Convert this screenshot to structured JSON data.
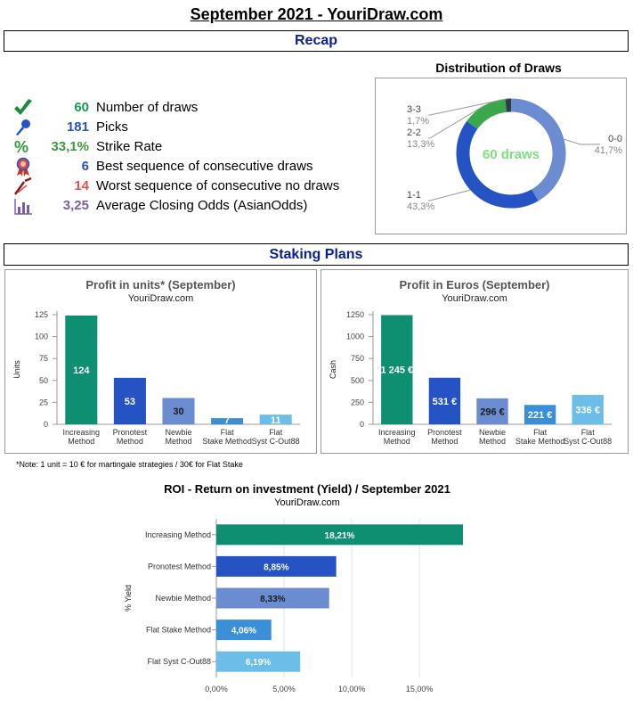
{
  "page": {
    "title": "September 2021 - YouriDraw.com",
    "recap_label": "Recap",
    "staking_label": "Staking Plans",
    "note": "*Note:  1 unit = 10 € for martingale strategies / 30€ for Flat Stake"
  },
  "colors": {
    "section_text": "#0a1f8f",
    "increasing": "#0e8f72",
    "pronotest": "#2553c4",
    "newbie": "#6b8cd0",
    "flat_stake": "#3b8fd8",
    "flat_syst": "#6cbde8"
  },
  "recap": {
    "stats": [
      {
        "icon": "checkmark-icon",
        "value": "60",
        "label": "Number of draws",
        "color": "#1a9a5a"
      },
      {
        "icon": "pushpin-icon",
        "value": "181",
        "label": "Picks",
        "color": "#2553c4"
      },
      {
        "icon": "percent-icon",
        "value": "33,1%",
        "label": "Strike Rate",
        "color": "#3a9a3a"
      },
      {
        "icon": "award-ribbon-icon",
        "value": "6",
        "label": "Best sequence of consecutive draws",
        "color": "#2553c4"
      },
      {
        "icon": "broken-pen-icon",
        "value": "14",
        "label": "Worst sequence of consecutive no draws",
        "color": "#d9534f"
      },
      {
        "icon": "bar-chart-icon",
        "value": "3,25",
        "label": "Average Closing Odds (AsianOdds)",
        "color": "#7b5ea7"
      }
    ]
  },
  "chart_data": [
    {
      "type": "pie",
      "title": "Distribution of Draws",
      "center_label": "60 draws",
      "slices": [
        {
          "name": "0-0",
          "value": 41.7,
          "label": "41,7%",
          "color": "#6b8cd0"
        },
        {
          "name": "1-1",
          "value": 43.3,
          "label": "43,3%",
          "color": "#2553c4"
        },
        {
          "name": "2-2",
          "value": 13.3,
          "label": "13,3%",
          "color": "#3aa84a"
        },
        {
          "name": "3-3",
          "value": 1.7,
          "label": "1,7%",
          "color": "#2f3b4a"
        }
      ]
    },
    {
      "type": "bar",
      "title": "Profit in units* (September)",
      "subtitle": "YouriDraw.com",
      "ylabel": "Units",
      "categories": [
        "Increasing Method",
        "Pronotest Method",
        "Newbie Method",
        "Flat Stake Method",
        "Flat Syst C-Out88"
      ],
      "values": [
        124,
        53,
        30,
        7,
        11
      ],
      "value_labels": [
        "124",
        "53",
        "30",
        "7",
        "11"
      ],
      "ylim": [
        0,
        125
      ],
      "yticks": [
        0,
        25,
        50,
        75,
        100,
        125
      ],
      "ytick_labels": [
        "0",
        "25",
        "50",
        "75",
        "100",
        "125"
      ]
    },
    {
      "type": "bar",
      "title": "Profit in Euros (September)",
      "subtitle": "YouriDraw.com",
      "ylabel": "Cash",
      "categories": [
        "Increasing Method",
        "Pronotest Method",
        "Newbie Method",
        "Flat Stake Method",
        "Flat Syst C-Out88"
      ],
      "values": [
        1245,
        531,
        296,
        221,
        336
      ],
      "value_labels": [
        "1 245 €",
        "531 €",
        "296 €",
        "221 €",
        "336 €"
      ],
      "ylim": [
        0,
        1250
      ],
      "yticks": [
        0,
        250,
        500,
        750,
        1000,
        1250
      ],
      "ytick_labels": [
        "0",
        "250",
        "500",
        "750",
        "1000",
        "1250"
      ]
    },
    {
      "type": "bar",
      "orientation": "horizontal",
      "title": "ROI - Return on investment (Yield) / September 2021",
      "subtitle": "YouriDraw.com",
      "ylabel": "% Yield",
      "categories": [
        "Increasing Method",
        "Pronotest Method",
        "Newbie Method",
        "Flat Stake Method",
        "Flat Syst C-Out88"
      ],
      "values": [
        18.21,
        8.85,
        8.33,
        4.06,
        6.19
      ],
      "value_labels": [
        "18,21%",
        "8,85%",
        "8,33%",
        "4,06%",
        "6,19%"
      ],
      "xlim": [
        0,
        18.21
      ],
      "xticks": [
        0,
        5,
        10,
        15
      ],
      "xtick_labels": [
        "0,00%",
        "5,00%",
        "10,00%",
        "15,00%"
      ]
    }
  ]
}
